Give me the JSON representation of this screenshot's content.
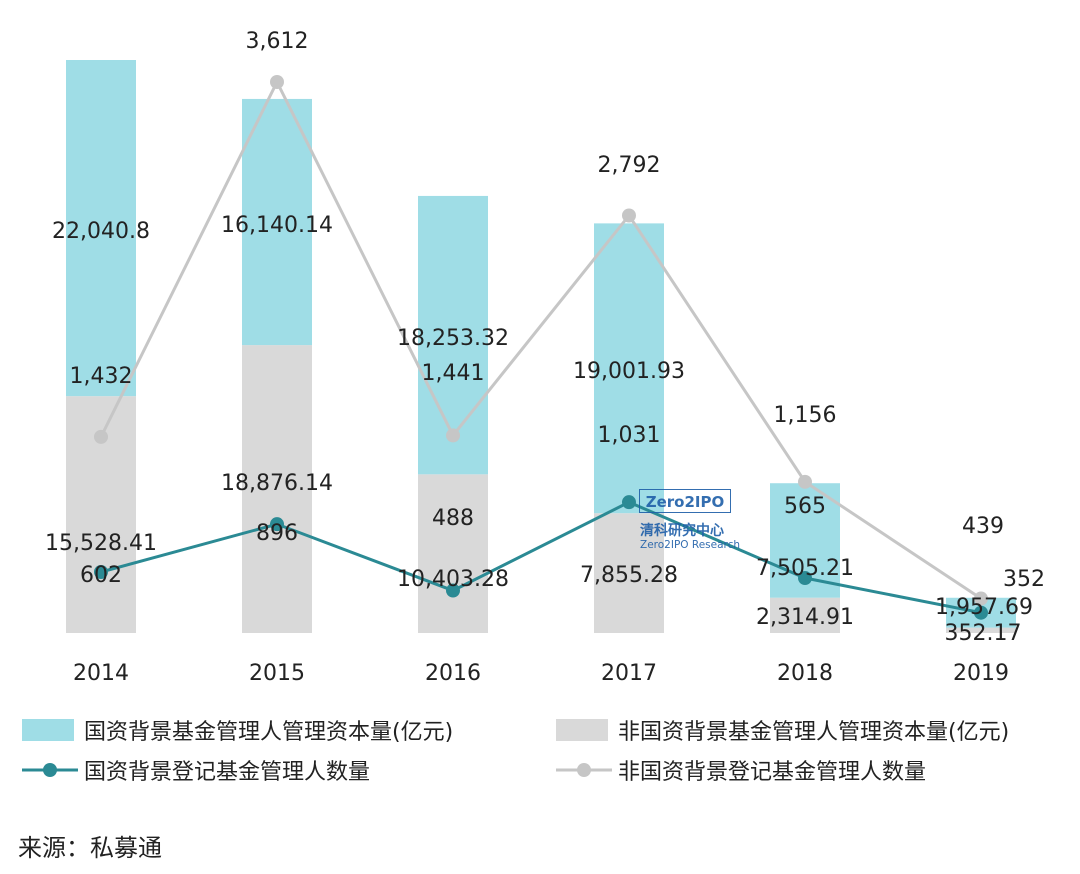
{
  "chart_data": {
    "type": "bar",
    "stacked": true,
    "categories": [
      "2014",
      "2015",
      "2016",
      "2017",
      "2018",
      "2019"
    ],
    "series": [
      {
        "name": "非国资背景基金管理人管理资本量(亿元)",
        "kind": "bar",
        "color": "#d9d9d9",
        "values": [
          15528.41,
          18876.14,
          10403.28,
          7855.28,
          2314.91,
          352.17
        ],
        "labels": [
          "15,528.41",
          "18,876.14",
          "10,403.28",
          "7,855.28",
          "2,314.91",
          "352.17"
        ]
      },
      {
        "name": "国资背景基金管理人管理资本量(亿元)",
        "kind": "bar",
        "color": "#9fdde6",
        "values": [
          22040.8,
          16140.14,
          18253.32,
          19001.93,
          7505.21,
          1957.69
        ],
        "labels": [
          "22,040.8",
          "16,140.14",
          "18,253.32",
          "19,001.93",
          "7,505.21",
          "1,957.69"
        ]
      },
      {
        "name": "国资背景登记基金管理人数量",
        "kind": "line",
        "color": "#2b8a94",
        "values": [
          602,
          896,
          488,
          1031,
          565,
          352
        ],
        "labels": [
          "602",
          "896",
          "488",
          "1,031",
          "565",
          "352"
        ]
      },
      {
        "name": "非国资背景登记基金管理人数量",
        "kind": "line",
        "color": "#c6c6c6",
        "values": [
          1432,
          3612,
          1441,
          2792,
          1156,
          439
        ],
        "labels": [
          "1,432",
          "3,612",
          "1,441",
          "2,792",
          "1,156",
          "439"
        ]
      }
    ],
    "legend_position": "bottom",
    "grid": false
  },
  "legend": [
    {
      "label": "国资背景基金管理人管理资本量(亿元)",
      "type": "bar",
      "color": "#9fdde6"
    },
    {
      "label": "非国资背景基金管理人管理资本量(亿元)",
      "type": "bar",
      "color": "#d9d9d9"
    },
    {
      "label": "国资背景登记基金管理人数量",
      "type": "line",
      "color": "#2b8a94"
    },
    {
      "label": "非国资背景登记基金管理人数量",
      "type": "line",
      "color": "#c6c6c6"
    }
  ],
  "source": "来源：私募通",
  "watermark": {
    "logo_text": "Zero2IPO",
    "cn": "清科研究中心",
    "en": "Zero2IPO Research"
  }
}
